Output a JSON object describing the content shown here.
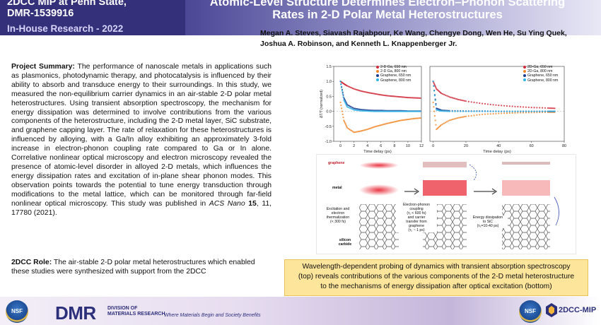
{
  "header": {
    "left_line1": "2DCC MIP at Penn State,",
    "left_line2": "DMR-1539916",
    "left_sub": "In-House Research - 2022",
    "title_line1": "Atomic-Level Structure Determines Electron–Phonon Scattering",
    "title_line2": "Rates in 2-D Polar Metal Heterostructures",
    "authors": "Megan A. Steves, Siavash Rajabpour, Ke Wang, Chengye Dong, Wen He, Su Ying Quek, Joshua A. Robinson, and Kenneth L. Knappenberger Jr."
  },
  "summary": {
    "label": "Project Summary:",
    "text_a": " The performance of nanoscale metals in applications such as plasmonics, photodynamic therapy, and photocatalysis is influenced by their ability to absorb and transduce energy to their surroundings. In this study, we measured the non-equilibrium carrier dynamics in an air-stable 2-D polar metal heterostructures. Using transient absorption spectroscopy, the mechanism for energy dissipation was determined to involve contributions from the various components of the heterostructure, including the 2-D metal layer, SiC substrate, and graphene capping layer. The rate of relaxation for these heterostructures is influenced by alloying, with a Ga/In alloy exhibiting an approximately 3-fold increase in electron-phonon coupling rate compared to Ga or In alone. Correlative nonlinear optical microscopy and electron microscopy revealed the presence of atomic-level disorder in alloyed 2-D metals, which influences the energy dissipation rates and excitation of in-plane shear phonon modes. This observation points towards the potential to tune energy transduction through modifications to the metal lattice, which can be monitored through far-field nonlinear optical microscopy. This study was published in ",
    "journal": "ACS Nano",
    "volume": "15",
    "text_b": ", 11, 17780 (2021)."
  },
  "role": {
    "label": "2DCC Role:",
    "text": " The air-stable 2-D polar metal heterostructures which enabled these studies were synthesized with support from the 2DCC"
  },
  "caption": {
    "line1": "Wavelength-dependent  probing of dynamics with transient absorption spectroscopy",
    "line2": "(top) reveals contributions of the various components of the  2-D metal heterostructure",
    "line3": "to the  mechanisms of energy dissipation after optical excitation (bottom)"
  },
  "scheme": {
    "graphene": "graphene",
    "metal": "metal",
    "silicon_carbide": "silicon\ncarbide",
    "step1": "Excitation and\nelectron\nthermalization\n(< 300 fs)",
    "step2": "Electron-phonon\ncoupling\n(τ₁ < 600 fs)\nand carrier\ntransfer from\ngraphene\n(τ₂ ~ 1 ps)",
    "step3": "Energy dissipation\nto SiC\n(τ₃=10-40 ps)"
  },
  "footer": {
    "nsf": "NSF",
    "dmr": "DMR",
    "dmr_sub1": "DIVISION OF",
    "dmr_sub2": "MATERIALS RESEARCH",
    "tagline": "Where Materials Begin and Society Benefits",
    "mip": "2DCC-MIP"
  },
  "colors": {
    "header_bg": "#34307a",
    "caption_bg": "#fde59b",
    "ga650": "#d12c3b",
    "ga800": "#f28a2e",
    "gr650": "#1f3f8f",
    "gr800": "#2fb4e8"
  },
  "chart_data": [
    {
      "type": "scatter",
      "xlabel": "Time delay (ps)",
      "ylabel": "ΔT/T (normalized)",
      "xlim": [
        -1,
        12
      ],
      "ylim": [
        -1.0,
        1.5
      ],
      "xticks": [
        0,
        2,
        4,
        6,
        8,
        10,
        12
      ],
      "yticks": [
        -1.0,
        -0.5,
        0.0,
        0.5,
        1.0,
        1.5
      ],
      "series": [
        {
          "name": "2-D Ga, 650 nm",
          "color": "#d12c3b",
          "x": [
            0,
            0.5,
            1,
            2,
            3,
            4,
            5,
            6,
            7,
            8,
            9,
            10,
            11,
            12
          ],
          "y": [
            1.0,
            0.92,
            0.85,
            0.75,
            0.68,
            0.63,
            0.59,
            0.55,
            0.52,
            0.5,
            0.48,
            0.46,
            0.45,
            0.44
          ]
        },
        {
          "name": "2-D Ga, 800 nm",
          "color": "#f28a2e",
          "x": [
            0,
            0.5,
            1,
            2,
            3,
            4,
            5,
            6,
            7,
            8,
            9,
            10,
            11,
            12
          ],
          "y": [
            0.3,
            -0.3,
            -0.55,
            -0.7,
            -0.66,
            -0.6,
            -0.52,
            -0.46,
            -0.4,
            -0.35,
            -0.3,
            -0.27,
            -0.24,
            -0.22
          ]
        },
        {
          "name": "Graphene, 650 nm",
          "color": "#1f3f8f",
          "x": [
            0,
            0.5,
            1,
            2,
            3,
            4,
            5,
            6,
            7,
            8,
            9,
            10,
            11,
            12
          ],
          "y": [
            1.0,
            0.45,
            0.22,
            0.1,
            0.06,
            0.04,
            0.03,
            0.03,
            0.02,
            0.02,
            0.02,
            0.01,
            0.01,
            0.01
          ]
        },
        {
          "name": "Graphene, 800 nm",
          "color": "#2fb4e8",
          "x": [
            0,
            0.5,
            1,
            2,
            3,
            4,
            5,
            6,
            7,
            8,
            9,
            10,
            11,
            12
          ],
          "y": [
            1.0,
            0.38,
            0.15,
            0.05,
            0.02,
            0.01,
            0.0,
            0.0,
            0.0,
            0.0,
            0.0,
            0.0,
            0.0,
            0.0
          ]
        }
      ]
    },
    {
      "type": "scatter",
      "xlabel": "Time delay (ps)",
      "ylabel": "",
      "xlim": [
        -2,
        80
      ],
      "ylim": [
        -1.0,
        1.5
      ],
      "xticks": [
        0,
        20,
        40,
        60,
        80
      ],
      "yticks": [],
      "series": [
        {
          "name": "2D-Ga, 650 nm",
          "color": "#d12c3b",
          "x": [
            0,
            2,
            5,
            10,
            15,
            20,
            30,
            40,
            50,
            60,
            70,
            75
          ],
          "y": [
            1.0,
            0.75,
            0.6,
            0.48,
            0.4,
            0.34,
            0.26,
            0.2,
            0.16,
            0.13,
            0.11,
            0.1
          ]
        },
        {
          "name": "2D-Ga, 800 nm",
          "color": "#f28a2e",
          "x": [
            0,
            2,
            5,
            10,
            15,
            20,
            30,
            40,
            50,
            60,
            70,
            75
          ],
          "y": [
            0.3,
            -0.6,
            -0.45,
            -0.3,
            -0.22,
            -0.17,
            -0.1,
            -0.07,
            -0.05,
            -0.04,
            -0.03,
            -0.03
          ]
        },
        {
          "name": "Graphene, 650 nm",
          "color": "#1f3f8f",
          "x": [
            0,
            2,
            5,
            10,
            20,
            30,
            40,
            50,
            60,
            70,
            75
          ],
          "y": [
            1.0,
            0.1,
            0.04,
            0.02,
            0.01,
            0.01,
            0.0,
            0.0,
            0.0,
            0.0,
            0.0
          ]
        },
        {
          "name": "Graphene, 800 nm",
          "color": "#2fb4e8",
          "x": [
            0,
            2,
            5,
            10,
            20,
            30,
            40,
            50,
            60,
            70,
            75
          ],
          "y": [
            1.0,
            0.05,
            0.01,
            0.0,
            0.0,
            0.0,
            0.0,
            0.0,
            0.0,
            0.0,
            0.0
          ]
        }
      ]
    }
  ]
}
